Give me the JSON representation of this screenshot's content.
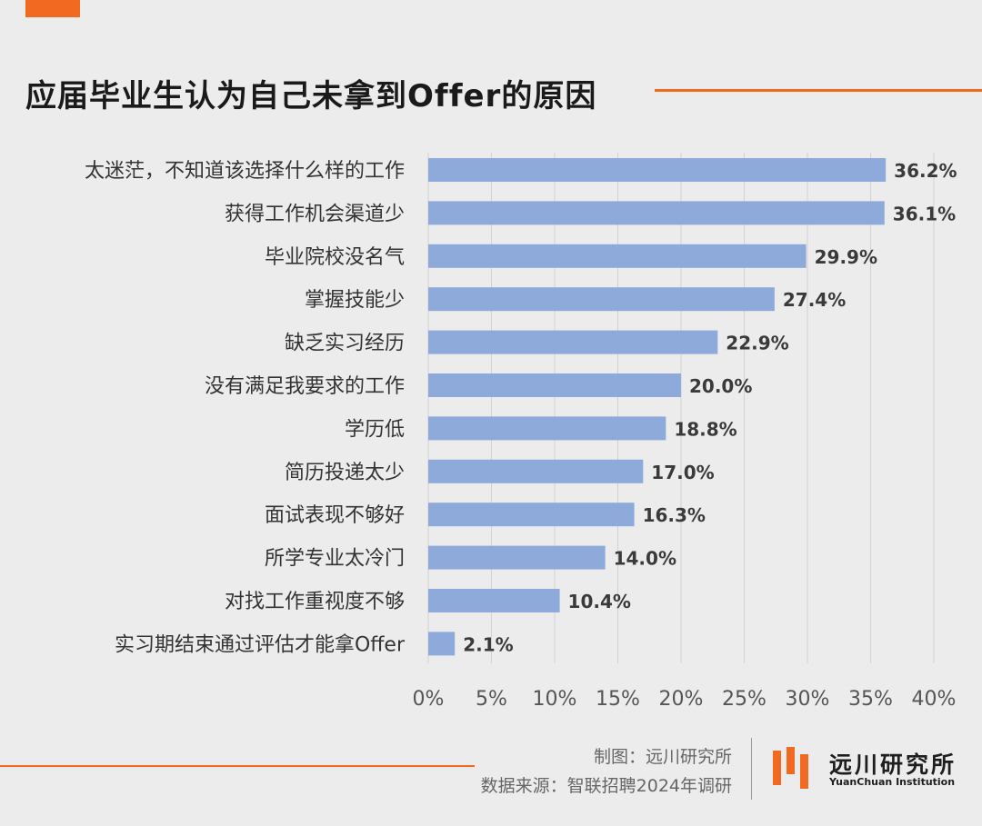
{
  "title": "应届毕业生认为自己未拿到Offer的原因",
  "chart_data": {
    "type": "bar",
    "orientation": "horizontal",
    "categories": [
      "太迷茫，不知道该选择什么样的工作",
      "获得工作机会渠道少",
      "毕业院校没名气",
      "掌握技能少",
      "缺乏实习经历",
      "没有满足我要求的工作",
      "学历低",
      "简历投递太少",
      "面试表现不够好",
      "所学专业太冷门",
      "对找工作重视度不够",
      "实习期结束通过评估才能拿Offer"
    ],
    "values": [
      36.2,
      36.1,
      29.9,
      27.4,
      22.9,
      20.0,
      18.8,
      17.0,
      16.3,
      14.0,
      10.4,
      2.1
    ],
    "value_labels": [
      "36.2%",
      "36.1%",
      "29.9%",
      "27.4%",
      "22.9%",
      "20.0%",
      "18.8%",
      "17.0%",
      "16.3%",
      "14.0%",
      "10.4%",
      "2.1%"
    ],
    "xlim": [
      0,
      40
    ],
    "ticks": [
      "0%",
      "5%",
      "10%",
      "15%",
      "20%",
      "25%",
      "30%",
      "35%",
      "40%"
    ],
    "tick_values": [
      0,
      5,
      10,
      15,
      20,
      25,
      30,
      35,
      40
    ],
    "grid": true,
    "bar_color": "#8eaadb"
  },
  "footer": {
    "credit_chart": "制图：远川研究所",
    "credit_source": "数据来源：智联招聘2024年调研"
  },
  "logo": {
    "name_cn": "远川研究所",
    "name_en": "YuanChuan Institution"
  },
  "colors": {
    "accent": "#f26a21",
    "background": "#ececec",
    "bar": "#8eaadb"
  }
}
